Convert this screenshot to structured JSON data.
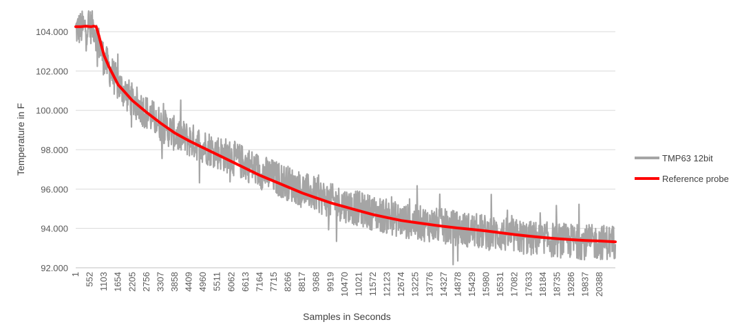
{
  "chart_data": {
    "type": "line",
    "title": "",
    "xlabel": "Samples in Seconds",
    "ylabel": "Temperature in F",
    "ylim": [
      92,
      105.05
    ],
    "y_ticks": [
      "92.000",
      "94.000",
      "96.000",
      "98.000",
      "100.000",
      "102.000",
      "104.000"
    ],
    "y_tick_values": [
      92,
      94,
      96,
      98,
      100,
      102,
      104
    ],
    "x_range": [
      1,
      21000
    ],
    "x_tick_labels": [
      "1",
      "552",
      "1103",
      "1654",
      "2205",
      "2756",
      "3307",
      "3858",
      "4409",
      "4960",
      "5511",
      "6062",
      "6613",
      "7164",
      "7715",
      "8266",
      "8817",
      "9368",
      "9919",
      "10470",
      "11021",
      "11572",
      "12123",
      "12674",
      "13225",
      "13776",
      "14327",
      "14878",
      "15429",
      "15980",
      "16531",
      "17082",
      "17633",
      "18184",
      "18735",
      "19286",
      "19837",
      "20388"
    ],
    "x_tick_values": [
      1,
      552,
      1103,
      1654,
      2205,
      2756,
      3307,
      3858,
      4409,
      4960,
      5511,
      6062,
      6613,
      7164,
      7715,
      8266,
      8817,
      9368,
      9919,
      10470,
      11021,
      11572,
      12123,
      12674,
      13225,
      13776,
      14327,
      14878,
      15429,
      15980,
      16531,
      17082,
      17633,
      18184,
      18735,
      19286,
      19837,
      20388
    ],
    "gridlines": "horizontal",
    "legend_position": "right",
    "series": [
      {
        "name": "TMP63 12bit",
        "color": "#a5a5a5",
        "style": "noisy",
        "noise_amplitude": 0.9,
        "x": [
          1,
          300,
          700,
          900,
          1103,
          1654,
          2205,
          2756,
          3307,
          3858,
          4409,
          4960,
          5511,
          6062,
          6613,
          7164,
          7715,
          8266,
          8817,
          9368,
          9919,
          10470,
          11021,
          11572,
          12123,
          12674,
          13225,
          13776,
          14327,
          14878,
          15429,
          15980,
          16531,
          17082,
          17633,
          18184,
          18735,
          19286,
          19837,
          20388,
          21000
        ],
        "y": [
          104.1,
          104.2,
          104.3,
          103.4,
          102.6,
          101.3,
          100.5,
          99.9,
          99.3,
          98.8,
          98.5,
          98.2,
          97.9,
          97.6,
          97.3,
          96.9,
          96.6,
          96.3,
          96.0,
          95.7,
          95.4,
          95.2,
          95.0,
          94.8,
          94.6,
          94.4,
          94.3,
          94.2,
          94.1,
          94.0,
          93.9,
          93.8,
          93.7,
          93.6,
          93.5,
          93.45,
          93.4,
          93.35,
          93.3,
          93.3,
          93.3
        ]
      },
      {
        "name": "Reference probe",
        "color": "#ff0000",
        "style": "smooth",
        "x": [
          1,
          200,
          400,
          600,
          700,
          800,
          900,
          1000,
          1103,
          1300,
          1654,
          2000,
          2205,
          2756,
          3307,
          3858,
          4409,
          4960,
          5511,
          6062,
          6613,
          7164,
          7715,
          8266,
          8817,
          9368,
          9919,
          10470,
          11021,
          11572,
          12123,
          12674,
          13225,
          13776,
          14327,
          14878,
          15429,
          15980,
          16531,
          17082,
          17633,
          18184,
          18735,
          19286,
          19837,
          20388,
          21000
        ],
        "y": [
          104.25,
          104.25,
          104.28,
          104.25,
          104.28,
          104.25,
          103.8,
          103.3,
          102.8,
          102.2,
          101.3,
          100.8,
          100.5,
          99.9,
          99.35,
          98.85,
          98.45,
          98.1,
          97.75,
          97.4,
          97.05,
          96.7,
          96.4,
          96.1,
          95.8,
          95.55,
          95.3,
          95.1,
          94.9,
          94.7,
          94.55,
          94.4,
          94.3,
          94.2,
          94.1,
          94.02,
          93.95,
          93.87,
          93.78,
          93.69,
          93.61,
          93.54,
          93.48,
          93.43,
          93.39,
          93.36,
          93.32
        ]
      }
    ]
  }
}
